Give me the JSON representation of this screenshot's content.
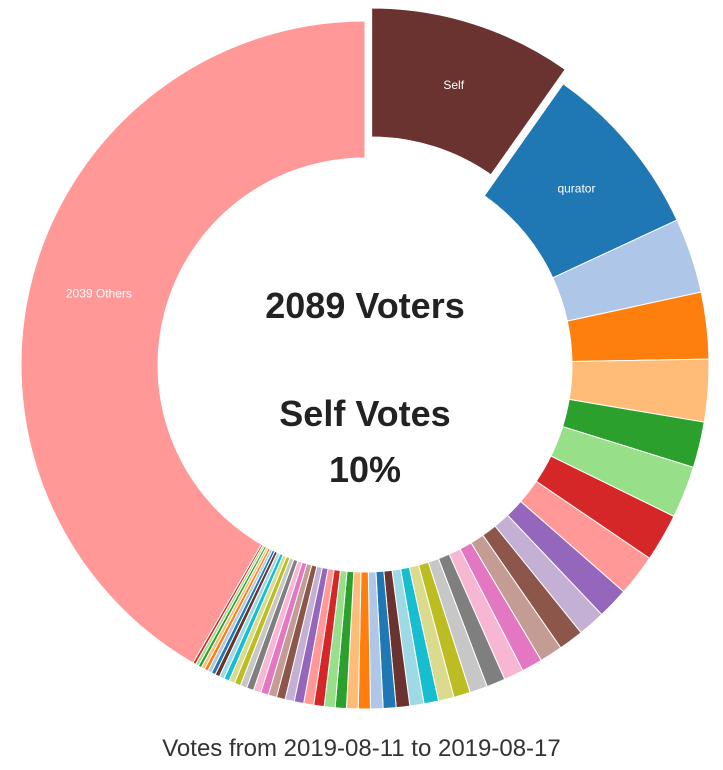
{
  "center": {
    "voters": "2089 Voters",
    "self_votes_label": "Self Votes",
    "self_votes_pct": "10%"
  },
  "caption": "Votes from 2019-08-11 to 2019-08-17",
  "chart_data": {
    "type": "pie",
    "donut": true,
    "total_voters": 2089,
    "slices": [
      {
        "name": "Self",
        "value": 10.0,
        "color": "#6b3330",
        "label_shown": true,
        "exploded": true
      },
      {
        "name": "qurator",
        "value": 8.5,
        "color": "#1f77b4",
        "label_shown": true
      },
      {
        "name": "",
        "value": 3.6,
        "color": "#aec7e8"
      },
      {
        "name": "",
        "value": 3.2,
        "color": "#ff7f0e"
      },
      {
        "name": "",
        "value": 3.0,
        "color": "#ffbb78"
      },
      {
        "name": "",
        "value": 2.2,
        "color": "#2ca02c"
      },
      {
        "name": "",
        "value": 2.5,
        "color": "#98df8a"
      },
      {
        "name": "",
        "value": 2.3,
        "color": "#d62728"
      },
      {
        "name": "",
        "value": 2.0,
        "color": "#ff9896"
      },
      {
        "name": "",
        "value": 1.5,
        "color": "#9467bd"
      },
      {
        "name": "",
        "value": 1.3,
        "color": "#c5b0d5"
      },
      {
        "name": "",
        "value": 1.2,
        "color": "#8c564b"
      },
      {
        "name": "",
        "value": 1.1,
        "color": "#c49c94"
      },
      {
        "name": "",
        "value": 1.0,
        "color": "#e377c2"
      },
      {
        "name": "",
        "value": 0.95,
        "color": "#f7b6d2"
      },
      {
        "name": "",
        "value": 0.9,
        "color": "#7f7f7f"
      },
      {
        "name": "",
        "value": 0.85,
        "color": "#c7c7c7"
      },
      {
        "name": "",
        "value": 0.8,
        "color": "#bcbd22"
      },
      {
        "name": "",
        "value": 0.75,
        "color": "#dbdb8d"
      },
      {
        "name": "",
        "value": 0.7,
        "color": "#17becf"
      },
      {
        "name": "",
        "value": 0.68,
        "color": "#9edae5"
      },
      {
        "name": "",
        "value": 0.65,
        "color": "#6b3330"
      },
      {
        "name": "",
        "value": 0.62,
        "color": "#1f77b4"
      },
      {
        "name": "",
        "value": 0.6,
        "color": "#aec7e8"
      },
      {
        "name": "",
        "value": 0.58,
        "color": "#ff7f0e"
      },
      {
        "name": "",
        "value": 0.56,
        "color": "#ffbb78"
      },
      {
        "name": "",
        "value": 0.54,
        "color": "#2ca02c"
      },
      {
        "name": "",
        "value": 0.52,
        "color": "#98df8a"
      },
      {
        "name": "",
        "value": 0.5,
        "color": "#d62728"
      },
      {
        "name": "",
        "value": 0.48,
        "color": "#ff9896"
      },
      {
        "name": "",
        "value": 0.46,
        "color": "#9467bd"
      },
      {
        "name": "",
        "value": 0.44,
        "color": "#c5b0d5"
      },
      {
        "name": "",
        "value": 0.42,
        "color": "#8c564b"
      },
      {
        "name": "",
        "value": 0.4,
        "color": "#c49c94"
      },
      {
        "name": "",
        "value": 0.38,
        "color": "#e377c2"
      },
      {
        "name": "",
        "value": 0.36,
        "color": "#f7b6d2"
      },
      {
        "name": "",
        "value": 0.34,
        "color": "#7f7f7f"
      },
      {
        "name": "",
        "value": 0.32,
        "color": "#c7c7c7"
      },
      {
        "name": "",
        "value": 0.3,
        "color": "#bcbd22"
      },
      {
        "name": "",
        "value": 0.28,
        "color": "#dbdb8d"
      },
      {
        "name": "",
        "value": 0.26,
        "color": "#17becf"
      },
      {
        "name": "",
        "value": 0.24,
        "color": "#9edae5"
      },
      {
        "name": "",
        "value": 0.22,
        "color": "#6b3330"
      },
      {
        "name": "",
        "value": 0.2,
        "color": "#1f77b4"
      },
      {
        "name": "",
        "value": 0.19,
        "color": "#aec7e8"
      },
      {
        "name": "",
        "value": 0.18,
        "color": "#ff7f0e"
      },
      {
        "name": "",
        "value": 0.17,
        "color": "#ffbb78"
      },
      {
        "name": "",
        "value": 0.16,
        "color": "#2ca02c"
      },
      {
        "name": "",
        "value": 0.15,
        "color": "#98df8a"
      },
      {
        "name": "",
        "value": 0.14,
        "color": "#d62728"
      },
      {
        "name": "2039 Others",
        "value": 42.63,
        "color": "#ff9896",
        "label_shown": true
      }
    ]
  }
}
